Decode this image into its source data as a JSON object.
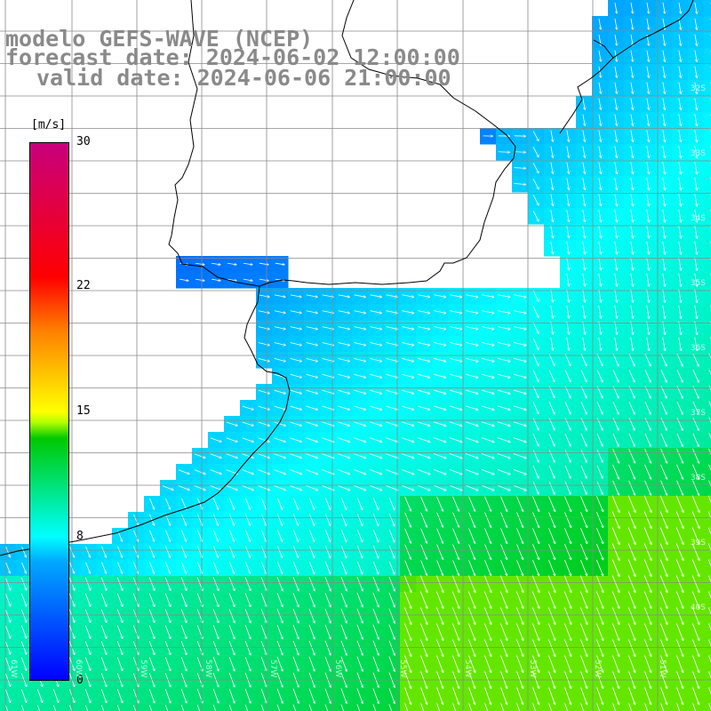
{
  "title": {
    "line1": "modelo GEFS-WAVE (NCEP)",
    "line2": "forecast date: 2024-06-02 12:00:00",
    "line3": "valid date: 2024-06-06 21:00:00"
  },
  "colorbar": {
    "unit": "[m/s]",
    "min": 0,
    "max": 30,
    "ticks": [
      {
        "label": "30",
        "value": 30
      },
      {
        "label": "22",
        "value": 22
      },
      {
        "label": "15",
        "value": 15
      },
      {
        "label": "8",
        "value": 8
      },
      {
        "label": "0",
        "value": 0
      }
    ],
    "colors": [
      "#0000ff",
      "#00a8ff",
      "#00ffff",
      "#00c800",
      "#ffff00",
      "#ff8000",
      "#ff0000",
      "#c8007d"
    ]
  },
  "grid": {
    "latitude_labels": [
      "32S",
      "33S",
      "34S",
      "35S",
      "36S",
      "37S",
      "38S",
      "39S",
      "40S"
    ],
    "longitude_labels": [
      "61W",
      "60W",
      "59W",
      "58W",
      "57W",
      "56W",
      "55W",
      "54W",
      "53W",
      "52W",
      "51W"
    ]
  }
}
